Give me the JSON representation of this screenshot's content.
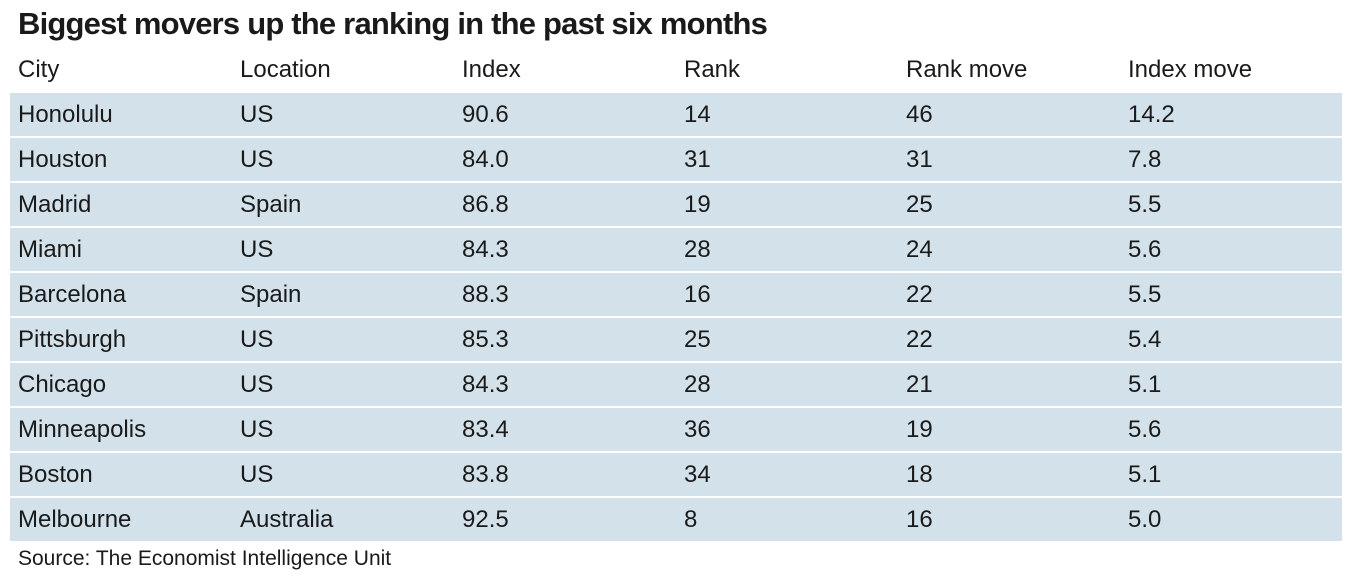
{
  "chart_data": {
    "type": "table",
    "title": "Biggest movers up the ranking in the past six months",
    "columns": [
      "City",
      "Location",
      "Index",
      "Rank",
      "Rank move",
      "Index move"
    ],
    "rows": [
      [
        "Honolulu",
        "US",
        "90.6",
        "14",
        "46",
        "14.2"
      ],
      [
        "Houston",
        "US",
        "84.0",
        "31",
        "31",
        "7.8"
      ],
      [
        "Madrid",
        "Spain",
        "86.8",
        "19",
        "25",
        "5.5"
      ],
      [
        "Miami",
        "US",
        "84.3",
        "28",
        "24",
        "5.6"
      ],
      [
        "Barcelona",
        "Spain",
        "88.3",
        "16",
        "22",
        "5.5"
      ],
      [
        "Pittsburgh",
        "US",
        "85.3",
        "25",
        "22",
        "5.4"
      ],
      [
        "Chicago",
        "US",
        "84.3",
        "28",
        "21",
        "5.1"
      ],
      [
        "Minneapolis",
        "US",
        "83.4",
        "36",
        "19",
        "5.6"
      ],
      [
        "Boston",
        "US",
        "83.8",
        "34",
        "18",
        "5.1"
      ],
      [
        "Melbourne",
        "Australia",
        "92.5",
        "8",
        "16",
        "5.0"
      ]
    ],
    "source": "Source: The Economist Intelligence Unit",
    "colors": {
      "row_fill": "#d3e2ea",
      "text": "#1a1a1a"
    }
  }
}
